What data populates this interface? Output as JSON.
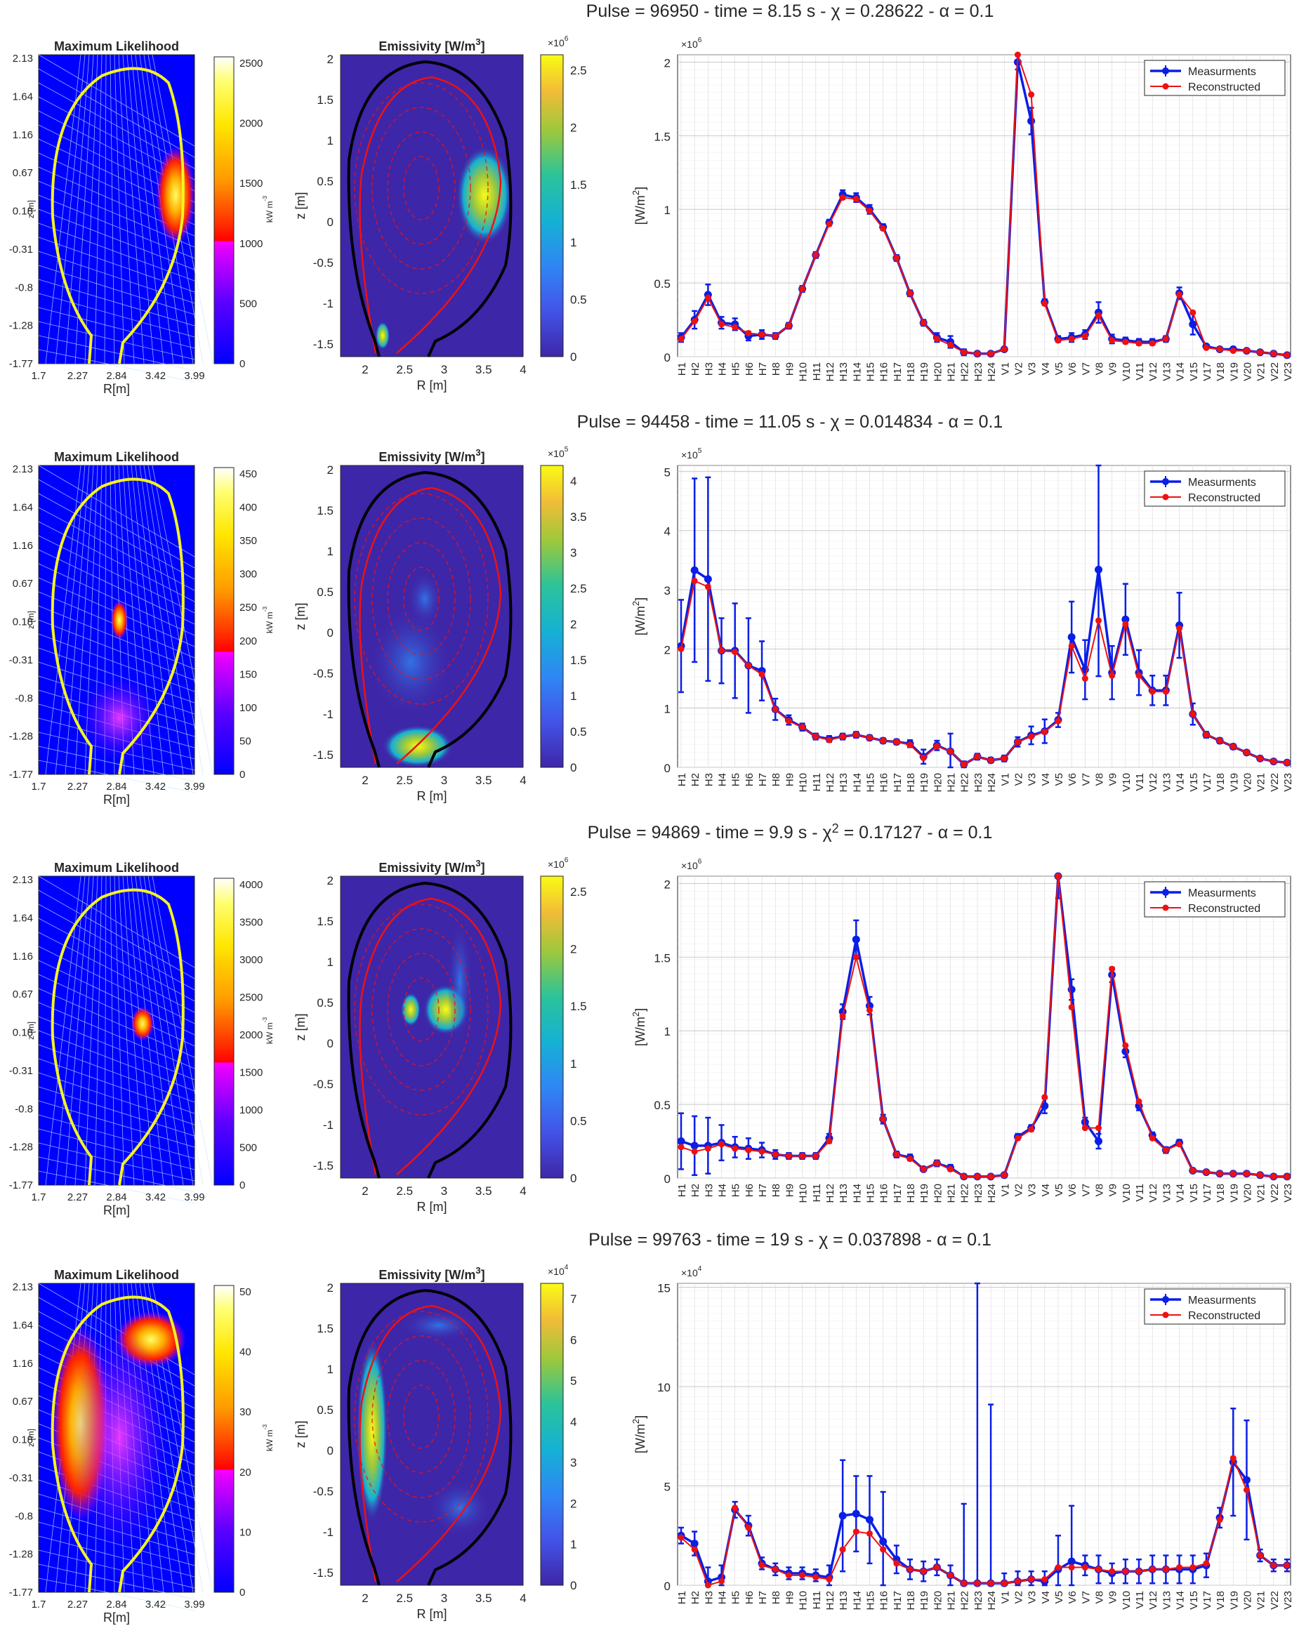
{
  "colors": {
    "measurement": "#0a1ee6",
    "reconstructed": "#ee1111",
    "boundary": "#f3f320",
    "vessel": "#000000",
    "ml_background": "#0000ff",
    "emiss_background": "#3e26a8"
  },
  "labels": {
    "ml_title": "Maximum Likelihood",
    "em_title": "Emissivity [W/m",
    "em_title_sup": "3",
    "em_title_end": "]",
    "cb_ml_units": "kW m",
    "cb_ml_units_sup": "-3",
    "r_ml": "R[m]",
    "z_ml": "z [m]",
    "r_em": "R [m]",
    "z_em": "z [m]",
    "y_chart": "[W/m",
    "y_chart_sup": "2",
    "y_chart_end": "]",
    "legend_meas": "Measurments",
    "legend_recon": "Reconstructed"
  },
  "ml_axis": {
    "x_ticks": [
      "1.7",
      "2.27",
      "2.84",
      "3.42",
      "3.99"
    ],
    "y_ticks": [
      "2.13",
      "1.64",
      "1.16",
      "0.67",
      "0.18",
      "-0.31",
      "-0.8",
      "-1.28",
      "-1.77"
    ]
  },
  "em_axis": {
    "x_ticks": [
      "2",
      "2.5",
      "3",
      "3.5",
      "4"
    ],
    "y_ticks": [
      "2",
      "1.5",
      "1",
      "0.5",
      "0",
      "-0.5",
      "-1",
      "-1.5"
    ]
  },
  "chart_categories": [
    "H1",
    "H2",
    "H3",
    "H4",
    "H5",
    "H6",
    "H7",
    "H8",
    "H9",
    "H10",
    "H11",
    "H12",
    "H13",
    "H14",
    "H15",
    "H16",
    "H17",
    "H18",
    "H19",
    "H20",
    "H21",
    "H22",
    "H23",
    "H24",
    "V1",
    "V2",
    "V3",
    "V4",
    "V5",
    "V6",
    "V7",
    "V8",
    "V9",
    "V10",
    "V11",
    "V12",
    "V13",
    "V14",
    "V15",
    "V17",
    "V18",
    "V19",
    "V20",
    "V21",
    "V22",
    "V23"
  ],
  "panels": [
    {
      "title": "Pulse = 96950 - time = 8.15 s - χ = 0.28622 - α = 0.1",
      "ml_cb_ticks": [
        "2500",
        "2000",
        "1500",
        "1000",
        "500",
        "0"
      ],
      "em_cb_exp": "×10",
      "em_cb_exp_sup": "6",
      "em_cb_ticks": [
        "2.5",
        "2",
        "1.5",
        "1",
        "0.5",
        "0"
      ],
      "chart_exp": "×10",
      "chart_exp_sup": "6",
      "chart_y_ticks": [
        "2",
        "1.5",
        "1",
        "0.5",
        "0"
      ]
    },
    {
      "title": "Pulse = 94458 - time = 11.05 s - χ = 0.014834 - α = 0.1",
      "ml_cb_ticks": [
        "450",
        "400",
        "350",
        "300",
        "250",
        "200",
        "150",
        "100",
        "50",
        "0"
      ],
      "em_cb_exp": "×10",
      "em_cb_exp_sup": "5",
      "em_cb_ticks": [
        "4",
        "3.5",
        "3",
        "2.5",
        "2",
        "1.5",
        "1",
        "0.5",
        "0"
      ],
      "chart_exp": "×10",
      "chart_exp_sup": "5",
      "chart_y_ticks": [
        "5",
        "4",
        "3",
        "2",
        "1",
        "0"
      ]
    },
    {
      "title": "Pulse = 94869 - time = 9.9 s - χ",
      "title_sup": "2",
      "title_end": " = 0.17127 - α = 0.1",
      "ml_cb_ticks": [
        "4000",
        "3500",
        "3000",
        "2500",
        "2000",
        "1500",
        "1000",
        "500",
        "0"
      ],
      "em_cb_exp": "×10",
      "em_cb_exp_sup": "6",
      "em_cb_ticks": [
        "2.5",
        "2",
        "1.5",
        "1",
        "0.5",
        "0"
      ],
      "chart_exp": "×10",
      "chart_exp_sup": "6",
      "chart_y_ticks": [
        "2",
        "1.5",
        "1",
        "0.5",
        "0"
      ]
    },
    {
      "title": "Pulse = 99763 - time = 19 s - χ = 0.037898 - α = 0.1",
      "ml_cb_ticks": [
        "50",
        "40",
        "30",
        "20",
        "10",
        "0"
      ],
      "em_cb_exp": "×10",
      "em_cb_exp_sup": "4",
      "em_cb_ticks": [
        "7",
        "6",
        "5",
        "4",
        "3",
        "2",
        "1",
        "0"
      ],
      "chart_exp": "×10",
      "chart_exp_sup": "4",
      "chart_y_ticks": [
        "15",
        "10",
        "5",
        "0"
      ]
    }
  ],
  "chart_data": [
    {
      "type": "line",
      "title": "Pulse = 96950 - time = 8.15 s - χ = 0.28622 - α = 0.1",
      "ylabel": "[W/m2]",
      "y_scale": "×10^6",
      "ylim": [
        0,
        2.05
      ],
      "categories_ref": "chart_categories",
      "series": [
        {
          "name": "Measurments",
          "values": [
            0.13,
            0.25,
            0.42,
            0.23,
            0.22,
            0.14,
            0.15,
            0.14,
            0.21,
            0.46,
            0.69,
            0.91,
            1.1,
            1.08,
            1.0,
            0.88,
            0.67,
            0.43,
            0.23,
            0.13,
            0.1,
            0.03,
            0.02,
            0.02,
            0.05,
            2.0,
            1.6,
            0.37,
            0.12,
            0.13,
            0.15,
            0.3,
            0.12,
            0.11,
            0.1,
            0.1,
            0.12,
            0.43,
            0.22,
            0.07,
            0.05,
            0.05,
            0.04,
            0.03,
            0.02,
            0.01
          ],
          "error": [
            0.03,
            0.06,
            0.07,
            0.04,
            0.04,
            0.03,
            0.03,
            0.02,
            0.02,
            0.02,
            0.02,
            0.02,
            0.03,
            0.03,
            0.03,
            0.02,
            0.02,
            0.02,
            0.02,
            0.03,
            0.04,
            0.02,
            0.01,
            0.01,
            0.01,
            0.05,
            0.09,
            0.02,
            0.02,
            0.03,
            0.03,
            0.07,
            0.03,
            0.02,
            0.02,
            0.02,
            0.02,
            0.04,
            0.07,
            0.01,
            0.01,
            0.01,
            0.01,
            0.01,
            0.01,
            0.01
          ]
        },
        {
          "name": "Reconstructed",
          "values": [
            0.12,
            0.24,
            0.4,
            0.22,
            0.2,
            0.16,
            0.15,
            0.14,
            0.21,
            0.46,
            0.69,
            0.9,
            1.08,
            1.07,
            0.99,
            0.87,
            0.67,
            0.43,
            0.23,
            0.12,
            0.08,
            0.03,
            0.02,
            0.02,
            0.05,
            2.06,
            1.78,
            0.36,
            0.11,
            0.12,
            0.14,
            0.28,
            0.11,
            0.1,
            0.09,
            0.09,
            0.12,
            0.42,
            0.3,
            0.06,
            0.05,
            0.04,
            0.04,
            0.03,
            0.02,
            0.01
          ]
        }
      ]
    },
    {
      "type": "line",
      "title": "Pulse = 94458 - time = 11.05 s - χ = 0.014834 - α = 0.1",
      "ylabel": "[W/m2]",
      "y_scale": "×10^5",
      "ylim": [
        0,
        5.1
      ],
      "categories_ref": "chart_categories",
      "series": [
        {
          "name": "Measurments",
          "values": [
            2.05,
            3.33,
            3.18,
            1.97,
            1.97,
            1.72,
            1.63,
            0.98,
            0.8,
            0.68,
            0.52,
            0.48,
            0.52,
            0.55,
            0.5,
            0.45,
            0.43,
            0.4,
            0.18,
            0.37,
            0.27,
            0.05,
            0.18,
            0.12,
            0.15,
            0.43,
            0.54,
            0.61,
            0.8,
            2.2,
            1.65,
            3.34,
            1.6,
            2.5,
            1.6,
            1.3,
            1.3,
            2.4,
            0.9,
            0.55,
            0.45,
            0.35,
            0.25,
            0.15,
            0.1,
            0.08
          ],
          "error": [
            0.78,
            1.55,
            1.72,
            0.55,
            0.8,
            0.8,
            0.5,
            0.18,
            0.08,
            0.06,
            0.05,
            0.05,
            0.05,
            0.05,
            0.04,
            0.04,
            0.04,
            0.06,
            0.12,
            0.08,
            0.3,
            0.05,
            0.05,
            0.04,
            0.05,
            0.08,
            0.15,
            0.2,
            0.12,
            0.6,
            0.5,
            1.8,
            0.45,
            0.6,
            0.38,
            0.25,
            0.25,
            0.55,
            0.18,
            0.05,
            0.04,
            0.04,
            0.03,
            0.03,
            0.02,
            0.02
          ]
        },
        {
          "name": "Reconstructed",
          "values": [
            2.0,
            3.15,
            3.05,
            1.97,
            1.95,
            1.72,
            1.57,
            0.98,
            0.78,
            0.68,
            0.52,
            0.46,
            0.52,
            0.55,
            0.5,
            0.45,
            0.43,
            0.38,
            0.16,
            0.36,
            0.27,
            0.05,
            0.18,
            0.12,
            0.15,
            0.43,
            0.52,
            0.6,
            0.78,
            2.05,
            1.5,
            2.48,
            1.55,
            2.42,
            1.55,
            1.28,
            1.28,
            2.35,
            0.9,
            0.55,
            0.45,
            0.35,
            0.25,
            0.15,
            0.1,
            0.08
          ]
        }
      ]
    },
    {
      "type": "line",
      "title": "Pulse = 94869 - time = 9.9 s - χ2 = 0.17127 - α = 0.1",
      "ylabel": "[W/m2]",
      "y_scale": "×10^6",
      "ylim": [
        0,
        2.05
      ],
      "categories_ref": "chart_categories",
      "series": [
        {
          "name": "Measurments",
          "values": [
            0.25,
            0.22,
            0.22,
            0.24,
            0.21,
            0.2,
            0.19,
            0.16,
            0.15,
            0.15,
            0.15,
            0.27,
            1.13,
            1.62,
            1.17,
            0.4,
            0.16,
            0.14,
            0.06,
            0.1,
            0.07,
            0.01,
            0.01,
            0.01,
            0.02,
            0.28,
            0.34,
            0.49,
            2.05,
            1.28,
            0.38,
            0.25,
            1.38,
            0.86,
            0.49,
            0.29,
            0.19,
            0.24,
            0.05,
            0.04,
            0.03,
            0.03,
            0.03,
            0.02,
            0.01,
            0.01
          ],
          "error": [
            0.19,
            0.2,
            0.19,
            0.12,
            0.07,
            0.07,
            0.05,
            0.03,
            0.02,
            0.02,
            0.02,
            0.03,
            0.05,
            0.13,
            0.06,
            0.03,
            0.02,
            0.02,
            0.01,
            0.02,
            0.02,
            0.01,
            0.01,
            0.01,
            0.01,
            0.02,
            0.02,
            0.05,
            0.15,
            0.07,
            0.03,
            0.05,
            0.05,
            0.04,
            0.03,
            0.02,
            0.02,
            0.02,
            0.01,
            0.01,
            0.01,
            0.01,
            0.01,
            0.01,
            0.01,
            0.01
          ]
        },
        {
          "name": "Reconstructed",
          "values": [
            0.21,
            0.18,
            0.2,
            0.23,
            0.2,
            0.19,
            0.18,
            0.16,
            0.15,
            0.15,
            0.15,
            0.25,
            1.1,
            1.5,
            1.14,
            0.4,
            0.16,
            0.13,
            0.06,
            0.1,
            0.06,
            0.01,
            0.01,
            0.01,
            0.02,
            0.27,
            0.33,
            0.55,
            2.1,
            1.16,
            0.34,
            0.34,
            1.42,
            0.9,
            0.52,
            0.27,
            0.19,
            0.23,
            0.05,
            0.04,
            0.03,
            0.03,
            0.03,
            0.02,
            0.01,
            0.01
          ]
        }
      ]
    },
    {
      "type": "line",
      "title": "Pulse = 99763 - time = 19 s - χ = 0.037898 - α = 0.1",
      "ylabel": "[W/m2]",
      "y_scale": "×10^4",
      "ylim": [
        0,
        15.2
      ],
      "categories_ref": "chart_categories",
      "series": [
        {
          "name": "Measurments",
          "values": [
            2.5,
            2.1,
            0.2,
            0.4,
            3.8,
            3.0,
            1.1,
            0.8,
            0.6,
            0.6,
            0.5,
            0.4,
            3.5,
            3.6,
            3.3,
            2.2,
            1.3,
            0.8,
            0.7,
            0.9,
            0.5,
            0.1,
            0.1,
            0.1,
            0.1,
            0.2,
            0.3,
            0.2,
            0.8,
            1.2,
            1.0,
            0.8,
            0.6,
            0.7,
            0.7,
            0.8,
            0.8,
            0.8,
            0.8,
            1.0,
            3.4,
            6.2,
            5.3,
            1.5,
            1.0,
            1.0
          ],
          "error": [
            0.4,
            0.6,
            0.7,
            0.6,
            0.4,
            0.5,
            0.3,
            0.3,
            0.3,
            0.3,
            0.3,
            0.6,
            2.8,
            1.9,
            2.2,
            2.5,
            0.7,
            0.5,
            0.5,
            0.4,
            0.5,
            4.0,
            15.3,
            9.0,
            0.5,
            0.5,
            0.4,
            0.5,
            1.7,
            2.8,
            0.5,
            0.7,
            0.5,
            0.6,
            0.6,
            0.7,
            0.7,
            0.7,
            0.7,
            0.6,
            0.5,
            2.7,
            3.0,
            0.3,
            0.3,
            0.3
          ]
        },
        {
          "name": "Reconstructed",
          "values": [
            2.4,
            1.8,
            0.0,
            0.2,
            3.9,
            2.9,
            1.0,
            0.8,
            0.5,
            0.5,
            0.4,
            0.3,
            1.8,
            2.7,
            2.6,
            1.8,
            1.1,
            0.8,
            0.7,
            0.9,
            0.5,
            0.1,
            0.1,
            0.1,
            0.1,
            0.2,
            0.3,
            0.3,
            0.9,
            0.9,
            0.9,
            0.8,
            0.7,
            0.7,
            0.7,
            0.8,
            0.8,
            0.9,
            0.9,
            1.1,
            3.3,
            6.4,
            4.8,
            1.5,
            1.0,
            1.0
          ]
        }
      ]
    }
  ]
}
